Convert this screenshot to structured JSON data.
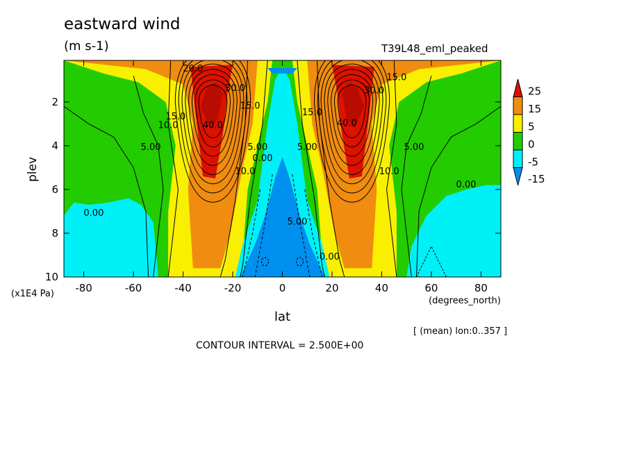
{
  "chart_data": {
    "type": "contour",
    "title": "eastward wind",
    "units": "(m s-1)",
    "dataset": "T39L48_eml_peaked",
    "xlabel": "lat",
    "x_units": "(degrees_north)",
    "ylabel": "plev",
    "y_units": "(x1E4 Pa)",
    "subtitle": "[ (mean) lon:0..357 ]",
    "contour_interval": "CONTOUR INTERVAL = 2.500E+00",
    "xlim": [
      -88,
      88
    ],
    "ylim": [
      0.1,
      10
    ],
    "y_inverted": true,
    "x_ticks": [
      {
        "value": -80,
        "label": "-80"
      },
      {
        "value": -60,
        "label": "-60"
      },
      {
        "value": -40,
        "label": "-40"
      },
      {
        "value": -20,
        "label": "-20"
      },
      {
        "value": 0,
        "label": "0"
      },
      {
        "value": 20,
        "label": "20"
      },
      {
        "value": 40,
        "label": "40"
      },
      {
        "value": 60,
        "label": "60"
      },
      {
        "value": 80,
        "label": "80"
      }
    ],
    "y_ticks": [
      {
        "value": 2,
        "label": "2"
      },
      {
        "value": 4,
        "label": "4"
      },
      {
        "value": 6,
        "label": "6"
      },
      {
        "value": 8,
        "label": "8"
      },
      {
        "value": 10,
        "label": "10"
      }
    ],
    "colorbar": {
      "levels": [
        "25",
        "15",
        "5",
        "0",
        "-5",
        "-15"
      ],
      "colors": [
        "#dd1100",
        "#f08c0f",
        "#f8f000",
        "#22cc00",
        "#00f0f8",
        "#0090f0"
      ]
    },
    "fill_colors": {
      "over25": "#dd1100",
      "c15_25": "#f08c0f",
      "c5_15": "#f8f000",
      "c0_5": "#22cc00",
      "cm5_0": "#00f0f8",
      "cm15_m5": "#0090f0"
    },
    "jets": [
      {
        "lat": -28,
        "plev": 2,
        "max_speed": 40
      },
      {
        "lat": 28,
        "plev": 2,
        "max_speed": 40
      }
    ],
    "contour_labels": [
      {
        "text": "20.0",
        "lat": -36,
        "plev": 0.6
      },
      {
        "text": "15.0",
        "lat": -43,
        "plev": 2.8
      },
      {
        "text": "10.0",
        "lat": -46,
        "plev": 3.2
      },
      {
        "text": "5.00",
        "lat": -53,
        "plev": 4.2
      },
      {
        "text": "40.0",
        "lat": -28,
        "plev": 3.2
      },
      {
        "text": "30.0",
        "lat": -19,
        "plev": 1.5
      },
      {
        "text": "15.0",
        "lat": -13,
        "plev": 2.3
      },
      {
        "text": "10.0",
        "lat": -15,
        "plev": 5.3
      },
      {
        "text": "5.00",
        "lat": -10,
        "plev": 4.2
      },
      {
        "text": "0.00",
        "lat": -8,
        "plev": 4.7
      },
      {
        "text": "0.00",
        "lat": -76,
        "plev": 7.2
      },
      {
        "text": "5.00",
        "lat": 10,
        "plev": 4.2
      },
      {
        "text": "15.0",
        "lat": 12,
        "plev": 2.6
      },
      {
        "text": "40.0",
        "lat": 26,
        "plev": 3.1
      },
      {
        "text": "30.0",
        "lat": 37,
        "plev": 1.6
      },
      {
        "text": "15.0",
        "lat": 46,
        "plev": 1.0
      },
      {
        "text": "10.0",
        "lat": 43,
        "plev": 5.3
      },
      {
        "text": "5.00",
        "lat": 53,
        "plev": 4.2
      },
      {
        "text": "5.00",
        "lat": 6,
        "plev": 7.6
      },
      {
        "text": "0.00",
        "lat": 19,
        "plev": 9.2
      },
      {
        "text": "0.00",
        "lat": 74,
        "plev": 5.9
      }
    ]
  }
}
